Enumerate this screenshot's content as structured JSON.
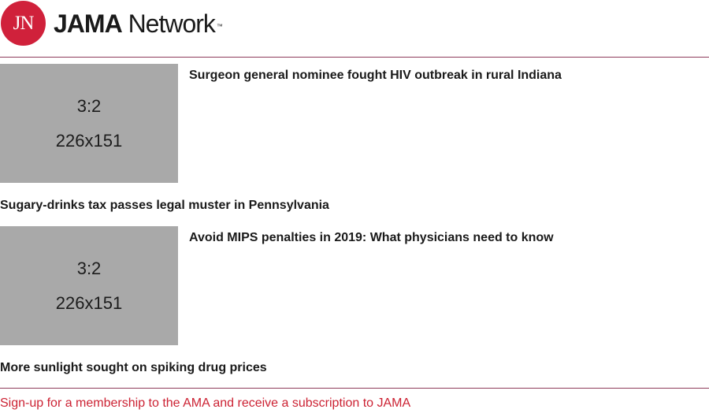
{
  "header": {
    "logo_initials": "JN",
    "brand": "JAMA",
    "brand_suffix": "Network",
    "trademark": "™"
  },
  "articles": [
    {
      "thumb_ratio": "3:2",
      "thumb_size": "226x151",
      "title": "Surgeon general nominee fought HIV outbreak in rural Indiana"
    },
    {
      "title": "Sugary-drinks tax passes legal muster in Pennsylvania"
    },
    {
      "thumb_ratio": "3:2",
      "thumb_size": "226x151",
      "title": "Avoid MIPS penalties in 2019: What physicians need to know"
    },
    {
      "title": "More sunlight sought on spiking drug prices"
    }
  ],
  "signup": {
    "text": "Sign-up for a membership to the AMA and receive a subscription to JAMA"
  },
  "colors": {
    "brand_red": "#d0213b",
    "divider": "#8e3b5a",
    "link_red": "#cc2233",
    "placeholder_gray": "#a9a9a9"
  }
}
